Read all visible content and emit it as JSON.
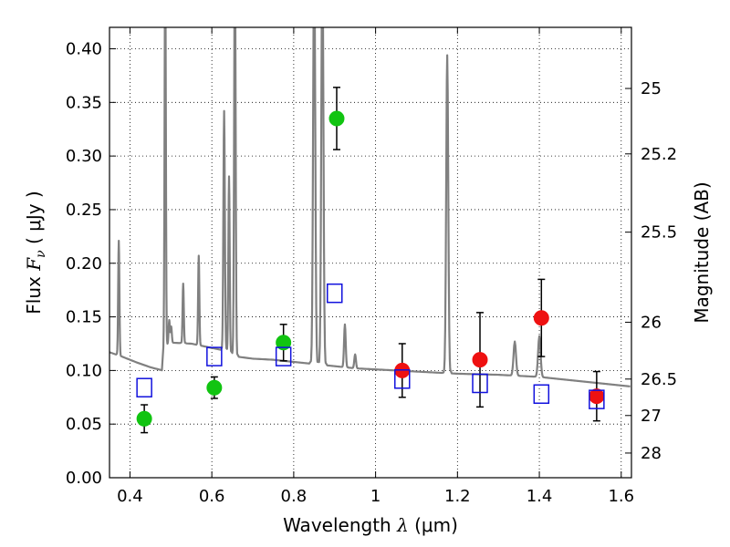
{
  "chart_data": {
    "type": "scatter",
    "xlabel": {
      "prefix": "Wavelength ",
      "symbol": "λ",
      "unit": " (μm)"
    },
    "ylabel": {
      "prefix": "Flux ",
      "symbol": "F",
      "subscript": "ν",
      "unit": " ( μJy )"
    },
    "y2label": "Magnitude (AB)",
    "xlim": [
      0.35,
      1.625
    ],
    "ylim": [
      0.0,
      0.42
    ],
    "grid": true,
    "x_ticks": [
      0.4,
      0.6,
      0.8,
      1.0,
      1.2,
      1.4,
      1.6
    ],
    "x_tick_labels": [
      "0.4",
      "0.6",
      "0.8",
      "1",
      "1.2",
      "1.4",
      "1.6"
    ],
    "y_ticks": [
      0.0,
      0.05,
      0.1,
      0.15,
      0.2,
      0.25,
      0.3,
      0.35,
      0.4
    ],
    "y_tick_labels": [
      "0.00",
      "0.05",
      "0.10",
      "0.15",
      "0.20",
      "0.25",
      "0.30",
      "0.35",
      "0.40"
    ],
    "y2_ticks": [
      {
        "label": "25",
        "flux": 0.363
      },
      {
        "label": "25.2",
        "flux": 0.302
      },
      {
        "label": "25.5",
        "flux": 0.229
      },
      {
        "label": "26",
        "flux": 0.145
      },
      {
        "label": "26.5",
        "flux": 0.092
      },
      {
        "label": "27",
        "flux": 0.058
      },
      {
        "label": "28",
        "flux": 0.023
      }
    ],
    "colors": {
      "green": "#11c411",
      "red": "#ee1111",
      "blue": "#1111dd",
      "spectrum": "#808080",
      "error": "#000000"
    },
    "series": [
      {
        "marker": "circle",
        "color": "#11c411",
        "points": [
          {
            "x": 0.435,
            "y": 0.055,
            "err": 0.013
          },
          {
            "x": 0.606,
            "y": 0.084,
            "err": 0.01
          },
          {
            "x": 0.775,
            "y": 0.126,
            "err": 0.017
          },
          {
            "x": 0.905,
            "y": 0.335,
            "err": 0.029
          }
        ]
      },
      {
        "marker": "circle",
        "color": "#ee1111",
        "points": [
          {
            "x": 1.065,
            "y": 0.1,
            "err": 0.025
          },
          {
            "x": 1.255,
            "y": 0.11,
            "err": 0.044
          },
          {
            "x": 1.405,
            "y": 0.149,
            "err": 0.036
          },
          {
            "x": 1.54,
            "y": 0.076,
            "err": 0.023
          }
        ]
      },
      {
        "marker": "square",
        "color": "#1111dd",
        "points": [
          {
            "x": 0.435,
            "y": 0.084
          },
          {
            "x": 0.606,
            "y": 0.113
          },
          {
            "x": 0.775,
            "y": 0.113
          },
          {
            "x": 0.9,
            "y": 0.172
          },
          {
            "x": 1.065,
            "y": 0.092
          },
          {
            "x": 1.255,
            "y": 0.088
          },
          {
            "x": 1.405,
            "y": 0.078
          },
          {
            "x": 1.54,
            "y": 0.073
          }
        ]
      }
    ],
    "spectrum": {
      "continuum": [
        [
          0.35,
          0.117
        ],
        [
          0.38,
          0.113
        ],
        [
          0.42,
          0.107
        ],
        [
          0.45,
          0.103
        ],
        [
          0.48,
          0.1
        ],
        [
          0.482,
          0.122
        ],
        [
          0.5,
          0.126
        ],
        [
          0.55,
          0.125
        ],
        [
          0.6,
          0.121
        ],
        [
          0.64,
          0.118
        ],
        [
          0.66,
          0.113
        ],
        [
          0.7,
          0.111
        ],
        [
          0.75,
          0.11
        ],
        [
          0.8,
          0.108
        ],
        [
          0.85,
          0.106
        ],
        [
          0.9,
          0.104
        ],
        [
          0.95,
          0.102
        ],
        [
          1.0,
          0.101
        ],
        [
          1.05,
          0.1
        ],
        [
          1.1,
          0.099
        ],
        [
          1.15,
          0.098
        ],
        [
          1.2,
          0.097
        ],
        [
          1.3,
          0.096
        ],
        [
          1.4,
          0.094
        ],
        [
          1.5,
          0.09
        ],
        [
          1.625,
          0.085
        ]
      ],
      "lines": [
        {
          "x": 0.3727,
          "peak": 0.221,
          "w": 0.0015
        },
        {
          "x": 0.4861,
          "peak": 0.5,
          "w": 0.0015
        },
        {
          "x": 0.4959,
          "peak": 0.147,
          "w": 0.0015
        },
        {
          "x": 0.5007,
          "peak": 0.141,
          "w": 0.0015
        },
        {
          "x": 0.53,
          "peak": 0.181,
          "w": 0.0015
        },
        {
          "x": 0.568,
          "peak": 0.207,
          "w": 0.0015
        },
        {
          "x": 0.63,
          "peak": 0.342,
          "w": 0.0018
        },
        {
          "x": 0.642,
          "peak": 0.281,
          "w": 0.0016
        },
        {
          "x": 0.6563,
          "peak": 0.5,
          "w": 0.0018
        },
        {
          "x": 0.85,
          "peak": 0.5,
          "w": 0.0025
        },
        {
          "x": 0.87,
          "peak": 0.5,
          "w": 0.0025
        },
        {
          "x": 0.925,
          "peak": 0.143,
          "w": 0.002
        },
        {
          "x": 0.95,
          "peak": 0.115,
          "w": 0.002
        },
        {
          "x": 1.175,
          "peak": 0.394,
          "w": 0.0025
        },
        {
          "x": 1.34,
          "peak": 0.127,
          "w": 0.003
        },
        {
          "x": 1.4,
          "peak": 0.132,
          "w": 0.003
        }
      ]
    }
  }
}
